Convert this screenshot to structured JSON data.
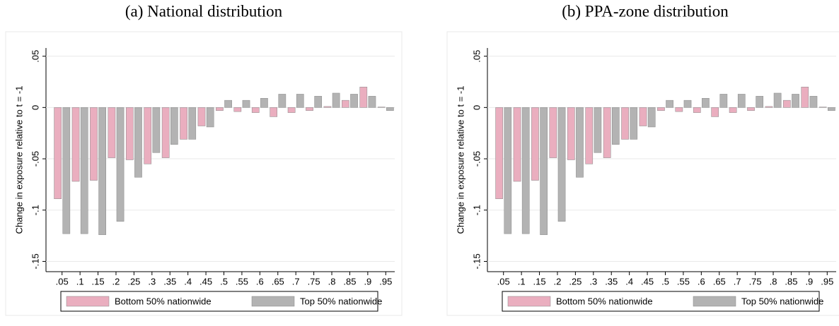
{
  "chart_data": [
    {
      "type": "bar",
      "title": "(a) National distribution",
      "y_label": "Change in exposure relative to t = -1",
      "categories": [
        ".05",
        ".1",
        ".15",
        ".2",
        ".25",
        ".3",
        ".35",
        ".4",
        ".45",
        ".5",
        ".55",
        ".6",
        ".65",
        ".7",
        ".75",
        ".8",
        ".85",
        ".9",
        ".95"
      ],
      "series": [
        {
          "name": "Bottom 50% nationwide",
          "color": "#eaaebf",
          "values": [
            -0.089,
            -0.072,
            -0.071,
            -0.049,
            -0.051,
            -0.055,
            -0.049,
            -0.031,
            -0.018,
            -0.003,
            -0.004,
            -0.005,
            -0.009,
            -0.005,
            -0.003,
            0.001,
            0.007,
            0.02,
            0.0005
          ]
        },
        {
          "name": "Top 50% nationwide",
          "color": "#b3b3b3",
          "values": [
            -0.123,
            -0.123,
            -0.124,
            -0.111,
            -0.068,
            -0.044,
            -0.036,
            -0.031,
            -0.019,
            0.007,
            0.007,
            0.009,
            0.013,
            0.013,
            0.011,
            0.014,
            0.013,
            0.011,
            -0.003
          ]
        }
      ],
      "ylim": [
        -0.16,
        0.058
      ],
      "yticks": [
        {
          "value": 0.05,
          "label": ".05"
        },
        0,
        {
          "value": -0.05,
          "label": "-.05"
        },
        {
          "value": -0.1,
          "label": "-.1"
        },
        {
          "value": -0.15,
          "label": "-.15"
        }
      ],
      "grid": true
    },
    {
      "type": "bar",
      "title": "(b) PPA-zone distribution",
      "y_label": "Change in exposure relative to t = -1",
      "categories": [
        ".05",
        ".1",
        ".15",
        ".2",
        ".25",
        ".3",
        ".35",
        ".4",
        ".45",
        ".5",
        ".55",
        ".6",
        ".65",
        ".7",
        ".75",
        ".8",
        ".85",
        ".9",
        ".95"
      ],
      "series": [
        {
          "name": "Bottom 50% nationwide",
          "color": "#eaaebf",
          "values": [
            -0.089,
            -0.072,
            -0.071,
            -0.049,
            -0.051,
            -0.055,
            -0.049,
            -0.031,
            -0.018,
            -0.003,
            -0.004,
            -0.005,
            -0.009,
            -0.005,
            -0.003,
            0.001,
            0.007,
            0.02,
            0.0005
          ]
        },
        {
          "name": "Top 50% nationwide",
          "color": "#b3b3b3",
          "values": [
            -0.123,
            -0.123,
            -0.124,
            -0.111,
            -0.068,
            -0.044,
            -0.036,
            -0.031,
            -0.019,
            0.007,
            0.007,
            0.009,
            0.013,
            0.013,
            0.011,
            0.014,
            0.013,
            0.011,
            -0.003
          ]
        }
      ],
      "ylim": [
        -0.16,
        0.058
      ],
      "yticks": [
        {
          "value": 0.05,
          "label": ".05"
        },
        0,
        {
          "value": -0.05,
          "label": "-.05"
        },
        {
          "value": -0.1,
          "label": "-.1"
        },
        {
          "value": -0.15,
          "label": "-.15"
        }
      ],
      "grid": true
    }
  ]
}
